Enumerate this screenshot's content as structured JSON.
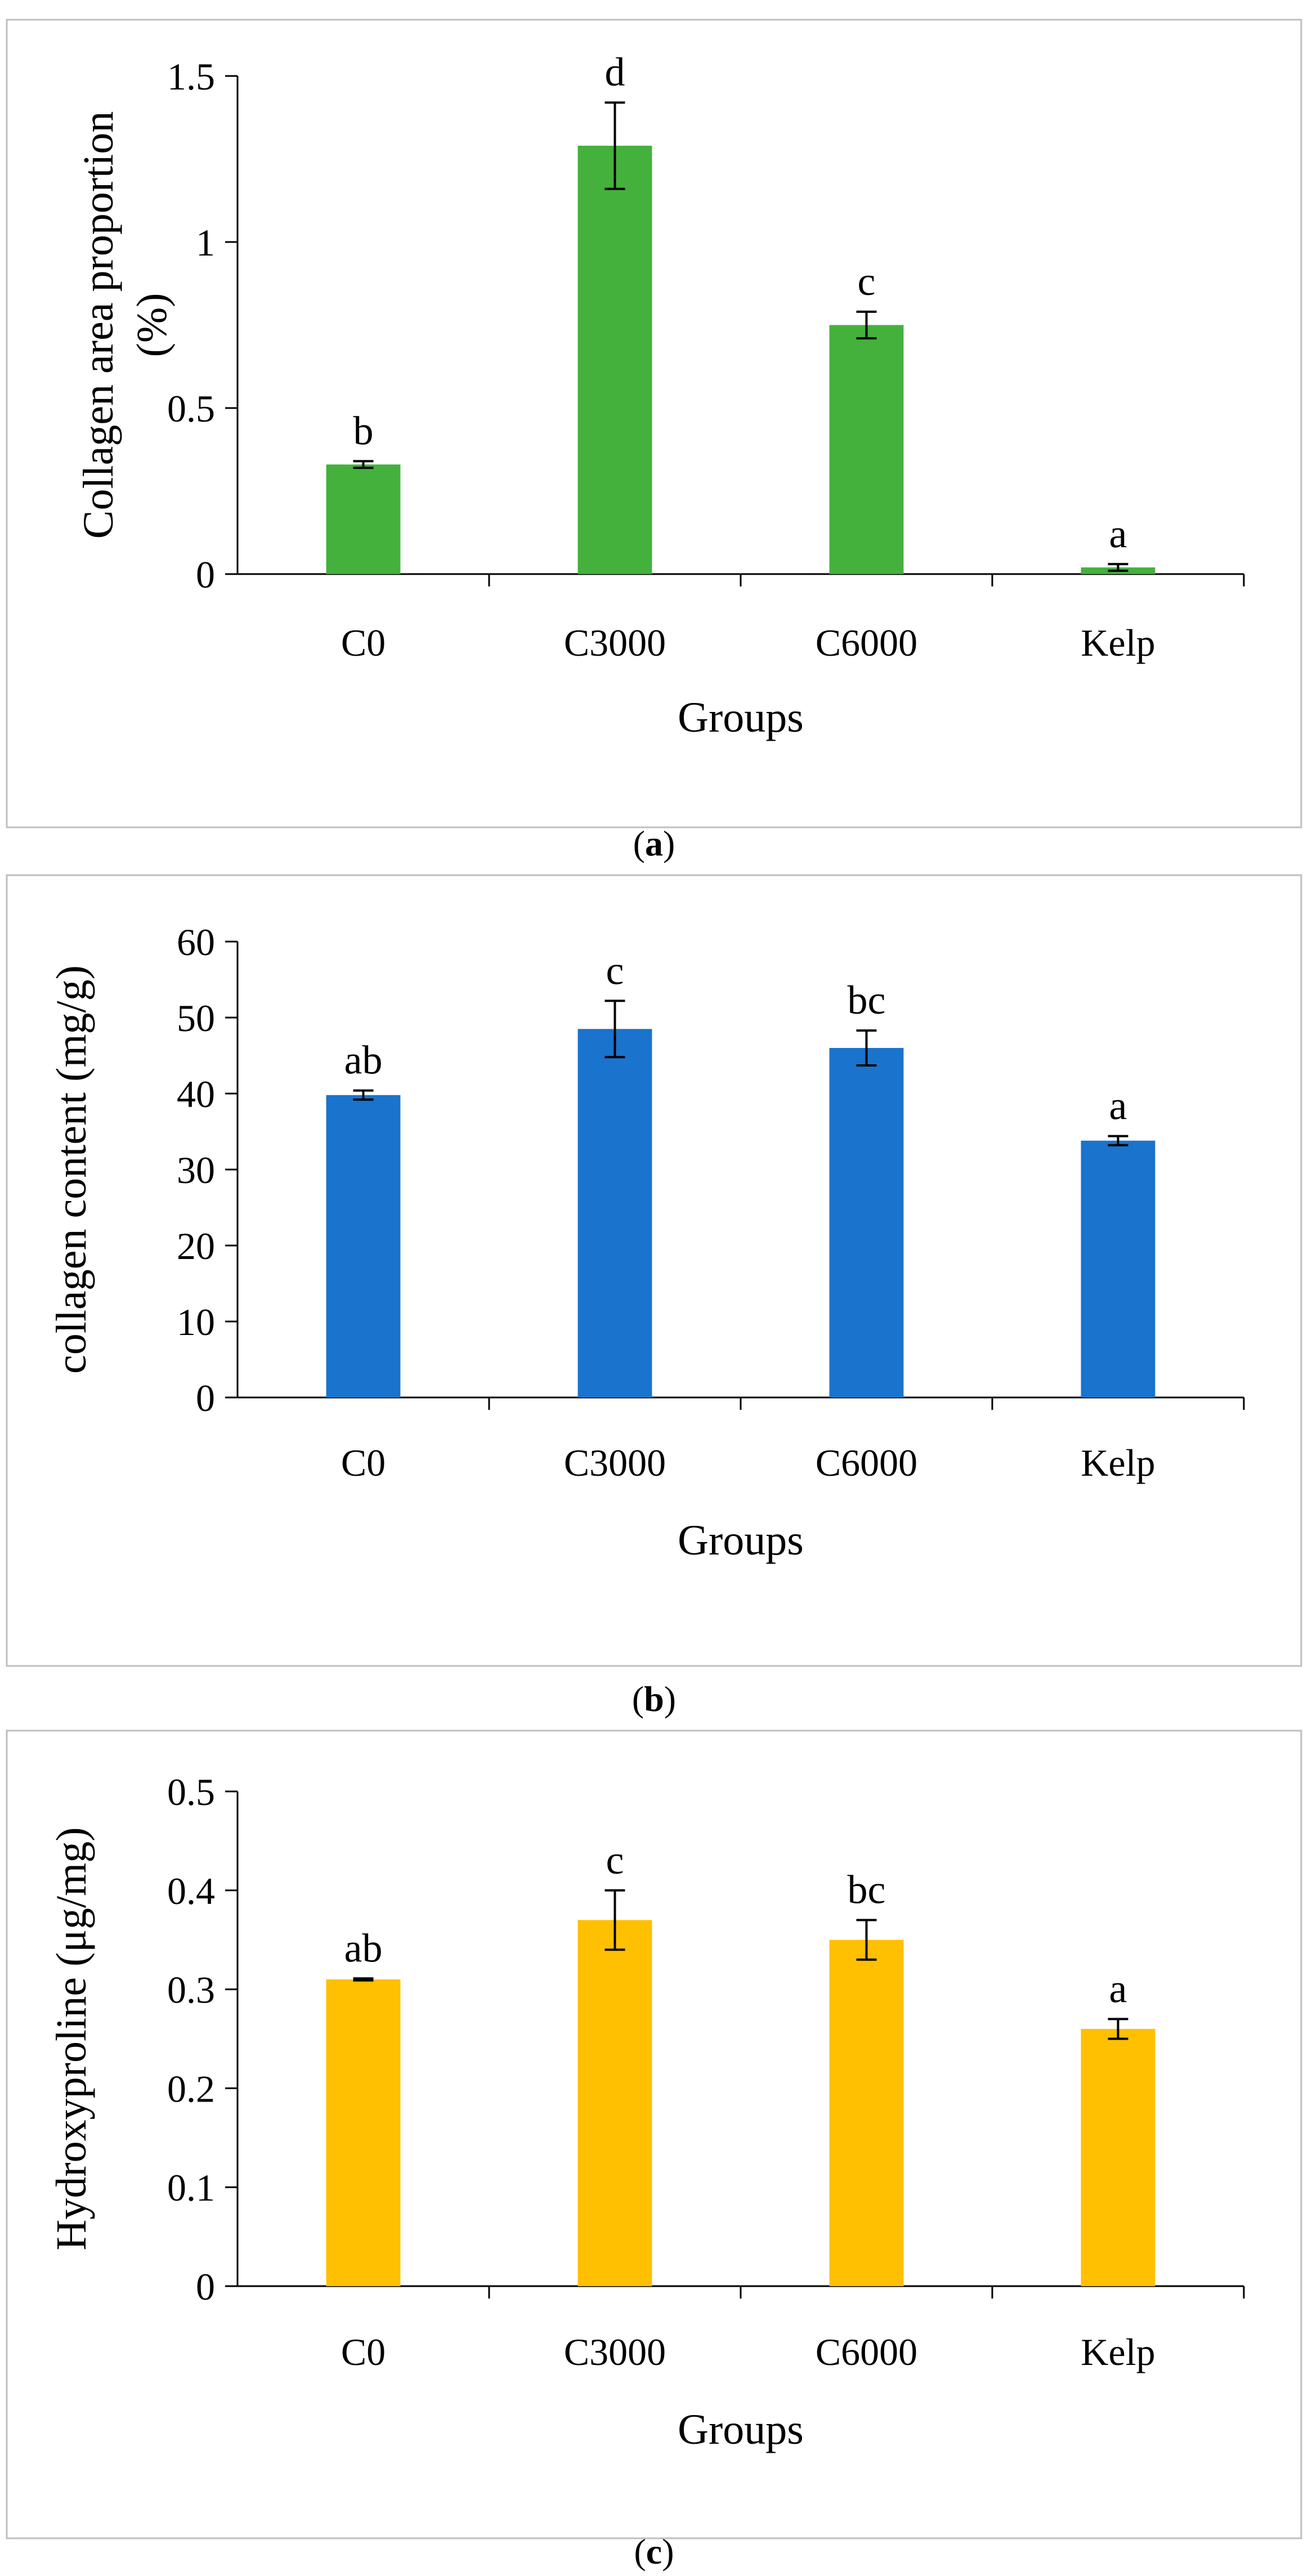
{
  "chart_data": [
    {
      "type": "bar",
      "panel": "a",
      "title": "",
      "xlabel": "Groups",
      "ylabel_lines": [
        "Collagen area proportion",
        "(%)"
      ],
      "categories": [
        "C0",
        "C3000",
        "C6000",
        "Kelp"
      ],
      "values": [
        0.33,
        1.29,
        0.75,
        0.02
      ],
      "errors": [
        0.01,
        0.13,
        0.04,
        0.01
      ],
      "annotations": [
        "b",
        "d",
        "c",
        "a"
      ],
      "ylim": [
        0,
        1.5
      ],
      "yticks": [
        0,
        0.5,
        1,
        1.5
      ],
      "ytick_labels": [
        "0",
        "0.5",
        "1",
        "1.5"
      ],
      "color": "#43b13c",
      "grid": false
    },
    {
      "type": "bar",
      "panel": "b",
      "title": "",
      "xlabel": "Groups",
      "ylabel_lines": [
        "collagen content (mg/g)"
      ],
      "categories": [
        "C0",
        "C3000",
        "C6000",
        "Kelp"
      ],
      "values": [
        39.8,
        48.5,
        46.0,
        33.8
      ],
      "errors": [
        0.6,
        3.7,
        2.3,
        0.6
      ],
      "annotations": [
        "ab",
        "c",
        "bc",
        "a"
      ],
      "ylim": [
        0,
        60
      ],
      "yticks": [
        0,
        10,
        20,
        30,
        40,
        50,
        60
      ],
      "ytick_labels": [
        "0",
        "10",
        "20",
        "30",
        "40",
        "50",
        "60"
      ],
      "color": "#1a73cc",
      "grid": false
    },
    {
      "type": "bar",
      "panel": "c",
      "title": "",
      "xlabel": "Groups",
      "ylabel_lines": [
        "Hydroxyproline (μg/mg)"
      ],
      "categories": [
        "C0",
        "C3000",
        "C6000",
        "Kelp"
      ],
      "values": [
        0.31,
        0.37,
        0.35,
        0.26
      ],
      "errors": [
        0.001,
        0.03,
        0.02,
        0.01
      ],
      "annotations": [
        "ab",
        "c",
        "bc",
        "a"
      ],
      "ylim": [
        0,
        0.5
      ],
      "yticks": [
        0,
        0.1,
        0.2,
        0.3,
        0.4,
        0.5
      ],
      "ytick_labels": [
        "0",
        "0.1",
        "0.2",
        "0.3",
        "0.4",
        "0.5"
      ],
      "color": "#fec000",
      "grid": false
    }
  ],
  "captions": [
    {
      "open": "(",
      "letter": "a",
      "close": ")"
    },
    {
      "open": "(",
      "letter": "b",
      "close": ")"
    },
    {
      "open": "(",
      "letter": "c",
      "close": ")"
    }
  ]
}
